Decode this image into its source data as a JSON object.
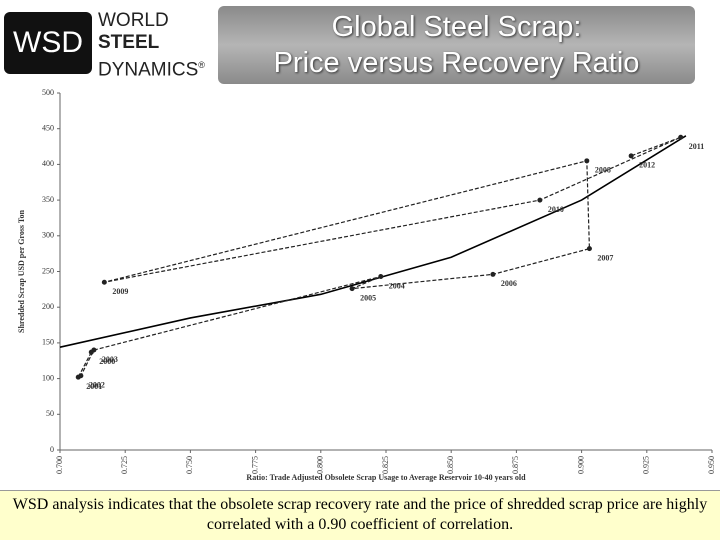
{
  "logo": {
    "abbr": "WSD",
    "lines": [
      "WORLD",
      "STEEL",
      "DYNAMICS"
    ],
    "mark": "®"
  },
  "title_lines": [
    "Global Steel Scrap:",
    "Price versus Recovery Ratio"
  ],
  "chart_data": {
    "type": "scatter",
    "x_label": "Ratio: Trade Adjusted Obsolete Scrap Usage to Average Reservoir 10-40 years old",
    "y_label": "Shredded Scrap USD per Gross Ton",
    "points": {
      "labels": [
        "2000",
        "2001",
        "2002",
        "2003",
        "2004",
        "2005",
        "2006",
        "2007",
        "2008",
        "2009",
        "2010",
        "2011",
        "2012"
      ],
      "x": [
        0.712,
        0.707,
        0.708,
        0.713,
        0.823,
        0.812,
        0.866,
        0.903,
        0.902,
        0.717,
        0.884,
        0.938,
        0.919
      ],
      "y": [
        137,
        102,
        104,
        140,
        243,
        226,
        246,
        282,
        405,
        235,
        350,
        438,
        412
      ],
      "color": "#222222"
    },
    "trend": {
      "x": [
        0.7,
        0.75,
        0.8,
        0.85,
        0.9,
        0.94
      ],
      "y": [
        144,
        185,
        218,
        270,
        350,
        440
      ],
      "color": "#000000"
    },
    "xlim": [
      0.7,
      0.95
    ],
    "xticks": [
      {
        "value": 0.7,
        "label": "0.700"
      },
      {
        "value": 0.725,
        "label": "0.725"
      },
      {
        "value": 0.75,
        "label": "0.750"
      },
      {
        "value": 0.775,
        "label": "0.775"
      },
      {
        "value": 0.8,
        "label": "0.800"
      },
      {
        "value": 0.825,
        "label": "0.825"
      },
      {
        "value": 0.85,
        "label": "0.850"
      },
      {
        "value": 0.875,
        "label": "0.875"
      },
      {
        "value": 0.9,
        "label": "0.900"
      },
      {
        "value": 0.925,
        "label": "0.925"
      },
      {
        "value": 0.95,
        "label": "0.950"
      }
    ],
    "ylim": [
      0,
      500
    ],
    "yticks": [
      0,
      50,
      100,
      150,
      200,
      250,
      300,
      350,
      400,
      450,
      500
    ]
  },
  "caption": "WSD analysis indicates that the obsolete scrap recovery rate and the price of shredded scrap price are highly correlated with a 0.90 coefficient of correlation."
}
